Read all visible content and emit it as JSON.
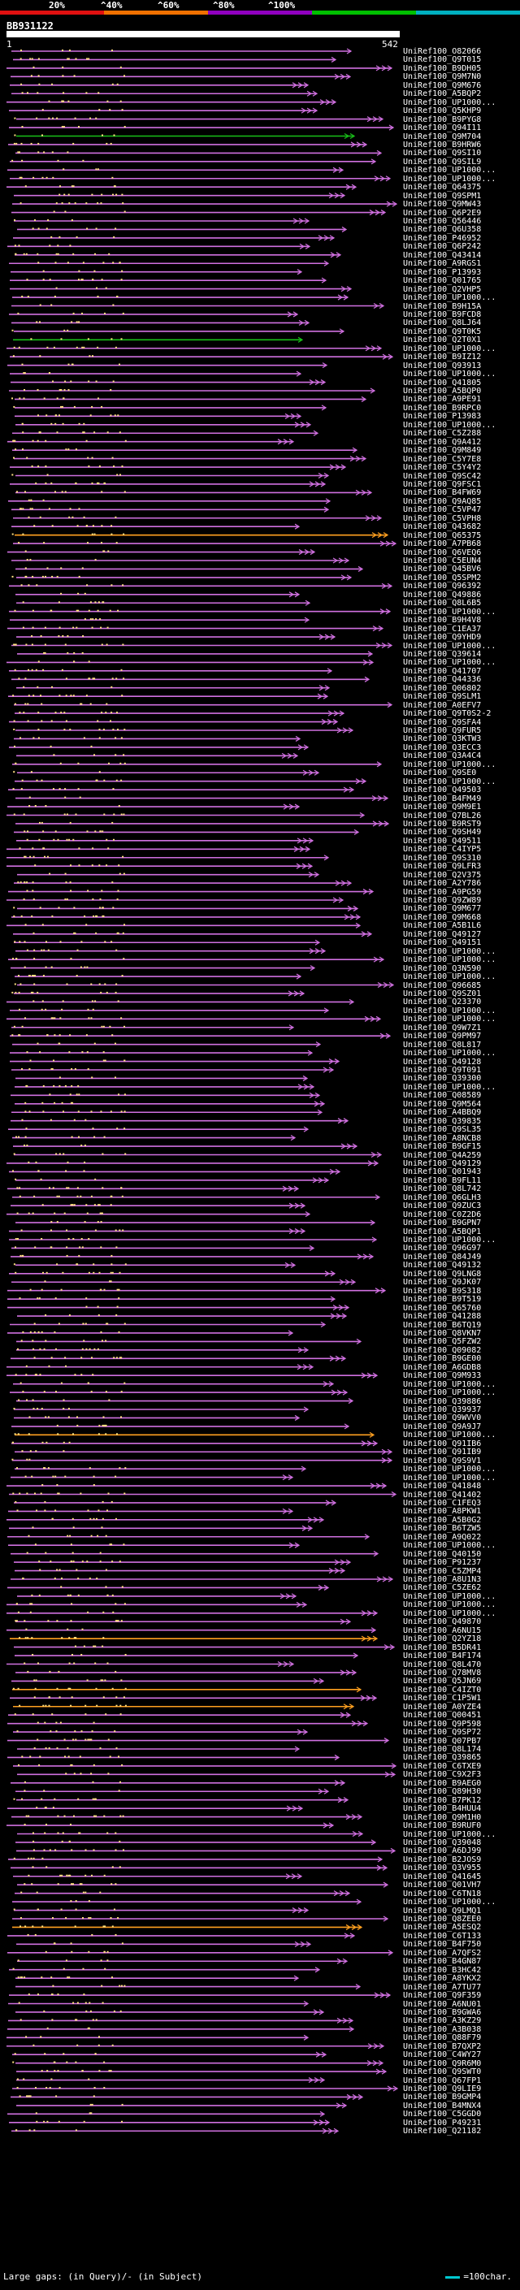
{
  "scale": {
    "labels": [
      "20%",
      "^40%",
      "^60%",
      "^80%",
      "^100%"
    ],
    "segment_colors": [
      "#e01010",
      "#f07000",
      "#9000c0",
      "#00c000",
      "#00b0c0"
    ]
  },
  "query": {
    "id": "BB931122",
    "start": "1",
    "end": "542"
  },
  "colors": {
    "magenta": "#d070e0",
    "orange": "#ffa020",
    "green": "#18c018",
    "dots": "#ffe080"
  },
  "hits": [
    "UniRef100_O82066",
    "UniRef100_Q9T015",
    "UniRef100_B9DH05",
    "UniRef100_Q9M7N0",
    "UniRef100_Q9M676",
    "UniRef100_A5BQP2",
    "UniRef100_UP1000...",
    "UniRef100_Q5KHP9",
    "UniRef100_B9PYG8",
    "UniRef100_Q94I11",
    "UniRef100_Q9M704",
    "UniRef100_B9HRW6",
    "UniRef100_Q9SI10",
    "UniRef100_Q9SIL9",
    "UniRef100_UP1000...",
    "UniRef100_UP1000...",
    "UniRef100_Q64375",
    "UniRef100_Q9SPM1",
    "UniRef100_Q9MW43",
    "UniRef100_Q6P2E9",
    "UniRef100_Q56446",
    "UniRef100_Q6U358",
    "UniRef100_P46952",
    "UniRef100_Q6P242",
    "UniRef100_Q43414",
    "UniRef100_A9RGS1",
    "UniRef100_P13993",
    "UniRef100_Q01765",
    "UniRef100_Q2VHP5",
    "UniRef100_UP1000...",
    "UniRef100_B9H15A",
    "UniRef100_B9FCD8",
    "UniRef100_Q8LJ64",
    "UniRef100_Q9T0K5",
    "UniRef100_Q2T0X1",
    "UniRef100_UP1000...",
    "UniRef100_B9IZ12",
    "UniRef100_Q93913",
    "UniRef100_UP1000...",
    "UniRef100_Q41805",
    "UniRef100_A5BQP0",
    "UniRef100_A9PE91",
    "UniRef100_B9RPC0",
    "UniRef100_P13983",
    "UniRef100_UP1000...",
    "UniRef100_C5Z288",
    "UniRef100_Q9A412",
    "UniRef100_Q9M849",
    "UniRef100_C5Y7E8",
    "UniRef100_C5Y4Y2",
    "UniRef100_Q9SC42",
    "UniRef100_Q9FSC1",
    "UniRef100_B4FW69",
    "UniRef100_Q9AQ85",
    "UniRef100_C5VP47",
    "UniRef100_C5VPH8",
    "UniRef100_Q43682",
    "UniRef100_Q65375",
    "UniRef100_A7PB68",
    "UniRef100_Q6VEQ6",
    "UniRef100_C5EUN4",
    "UniRef100_Q45BV6",
    "UniRef100_Q5SPM2",
    "UniRef100_Q96392",
    "UniRef100_Q49886",
    "UniRef100_Q8L6B5",
    "UniRef100_UP1000...",
    "UniRef100_B9H4V8",
    "UniRef100_C1EA37",
    "UniRef100_Q9YHD9",
    "UniRef100_UP1000...",
    "UniRef100_Q39614",
    "UniRef100_UP1000...",
    "UniRef100_Q41707",
    "UniRef100_Q44336",
    "UniRef100_Q06802",
    "UniRef100_Q9SLM1",
    "UniRef100_A0EFV7",
    "UniRef100_Q9T0S2-2",
    "UniRef100_Q9SFA4",
    "UniRef100_Q9FUR5",
    "UniRef100_Q3KTW3",
    "UniRef100_Q3ECC3",
    "UniRef100_Q3A4C4",
    "UniRef100_UP1000...",
    "UniRef100_Q9SE0",
    "UniRef100_UP1000...",
    "UniRef100_Q49503",
    "UniRef100_B4FM49",
    "UniRef100_Q9M9E1",
    "UniRef100_Q7BL26",
    "UniRef100_B9RST9",
    "UniRef100_Q9SH49",
    "UniRef100_Q49511",
    "UniRef100_C4IYP5",
    "UniRef100_Q9S310",
    "UniRef100_Q9LFR3",
    "UniRef100_Q2V375",
    "UniRef100_A2Y786",
    "UniRef100_A9PG59",
    "UniRef100_Q9ZW89",
    "UniRef100_Q9M677",
    "UniRef100_Q9M668",
    "UniRef100_A5B1L6",
    "UniRef100_Q49127",
    "UniRef100_Q49151",
    "UniRef100_UP1000...",
    "UniRef100_UP1000...",
    "UniRef100_Q3N590",
    "UniRef100_UP1000...",
    "UniRef100_Q96685",
    "UniRef100_Q9SZ01",
    "UniRef100_Q23370",
    "UniRef100_UP1000...",
    "UniRef100_UP1000...",
    "UniRef100_Q9W7Z1",
    "UniRef100_Q9PM97",
    "UniRef100_Q8L817",
    "UniRef100_UP1000...",
    "UniRef100_Q49128",
    "UniRef100_Q9T091",
    "UniRef100_Q39300",
    "UniRef100_UP1000...",
    "UniRef100_Q08589",
    "UniRef100_Q9M564",
    "UniRef100_A4BBQ9",
    "UniRef100_Q39835",
    "UniRef100_Q9SL35",
    "UniRef100_A8NCB8",
    "UniRef100_B9GF15",
    "UniRef100_Q4A259",
    "UniRef100_Q49129",
    "UniRef100_Q01943",
    "UniRef100_B9FL11",
    "UniRef100_Q8L742",
    "UniRef100_Q6GLH3",
    "UniRef100_Q9ZUC3",
    "UniRef100_C0Z2D6",
    "UniRef100_B9GPN7",
    "UniRef100_A5BQP1",
    "UniRef100_UP1000...",
    "UniRef100_Q96G97",
    "UniRef100_Q84J49",
    "UniRef100_Q49132",
    "UniRef100_Q9LNG8",
    "UniRef100_Q9JK07",
    "UniRef100_B9S318",
    "UniRef100_B9T519",
    "UniRef100_Q65760",
    "UniRef100_Q41288",
    "UniRef100_B6TQ19",
    "UniRef100_Q8VKN7",
    "UniRef100_Q5FZW2",
    "UniRef100_Q09082",
    "UniRef100_B9GE00",
    "UniRef100_A6GDB8",
    "UniRef100_Q9M933",
    "UniRef100_UP1000...",
    "UniRef100_UP1000...",
    "UniRef100_Q39886",
    "UniRef100_Q39937",
    "UniRef100_Q9WVV0",
    "UniRef100_Q9A9J7",
    "UniRef100_UP1000...",
    "UniRef100_Q91IB6",
    "UniRef100_Q91IB9",
    "UniRef100_Q9S9V1",
    "UniRef100_UP1000...",
    "UniRef100_UP1000...",
    "UniRef100_Q41848",
    "UniRef100_Q41402",
    "UniRef100_C1FEQ3",
    "UniRef100_A8PKW1",
    "UniRef100_A5B0G2",
    "UniRef100_B6TZW5",
    "UniRef100_A9Q022",
    "UniRef100_UP1000...",
    "UniRef100_Q40150",
    "UniRef100_P91237",
    "UniRef100_C5ZMP4",
    "UniRef100_A8U1N3",
    "UniRef100_C5ZE62",
    "UniRef100_UP1000...",
    "UniRef100_UP1000...",
    "UniRef100_UP1000...",
    "UniRef100_Q49870",
    "UniRef100_A6NU15",
    "UniRef100_Q2YZ18",
    "UniRef100_B5DR41",
    "UniRef100_B4F174",
    "UniRef100_Q8L470",
    "UniRef100_Q78MV8",
    "UniRef100_Q5JN69",
    "UniRef100_C4IZT0",
    "UniRef100_C1P5W1",
    "UniRef100_A0YZE4",
    "UniRef100_Q00451",
    "UniRef100_Q9P598",
    "UniRef100_Q9SP72",
    "UniRef100_Q07PB7",
    "UniRef100_Q8L174",
    "UniRef100_Q39865",
    "UniRef100_C6TXE9",
    "UniRef100_C9X2F3",
    "UniRef100_B9AEG0",
    "UniRef100_Q89H30",
    "UniRef100_B7PK12",
    "UniRef100_B4HUU4",
    "UniRef100_Q9M1H0",
    "UniRef100_B9RUF0",
    "UniRef100_UP1000...",
    "UniRef100_Q39048",
    "UniRef100_A6DJ99",
    "UniRef100_B2JOS9",
    "UniRef100_Q3V955",
    "UniRef100_Q41645",
    "UniRef100_Q01VH7",
    "UniRef100_C6TN18",
    "UniRef100_UP1000...",
    "UniRef100_Q9LMQ1",
    "UniRef100_Q8ZEE0",
    "UniRef100_A5ESQ2",
    "UniRef100_C6T133",
    "UniRef100_B4F750",
    "UniRef100_A7QFS2",
    "UniRef100_B4GN87",
    "UniRef100_B3HC42",
    "UniRef100_A8YKX2",
    "UniRef100_A7TU77",
    "UniRef100_Q9F359",
    "UniRef100_A6NU01",
    "UniRef100_B9GWA6",
    "UniRef100_A3KZ29",
    "UniRef100_A3B038",
    "UniRef100_Q88F79",
    "UniRef100_B7QXP2",
    "UniRef100_C4WY27",
    "UniRef100_Q9R6M0",
    "UniRef100_Q9SWT0",
    "UniRef100_Q67FP1",
    "UniRef100_Q9LIE9",
    "UniRef100_B9GMP4",
    "UniRef100_B4MNX4",
    "UniRef100_C5GGD0",
    "UniRef100_P49231",
    "UniRef100_Q21182"
  ],
  "footer": {
    "left": "Large gaps: (in Query)/- (in Subject)",
    "right": "=100char."
  }
}
